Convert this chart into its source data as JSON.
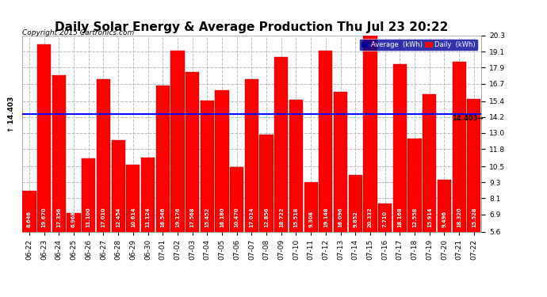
{
  "title": "Daily Solar Energy & Average Production Thu Jul 23 20:22",
  "copyright": "Copyright 2015 Cartronics.com",
  "average_value": 14.403,
  "categories": [
    "06-22",
    "06-23",
    "06-24",
    "06-25",
    "06-26",
    "06-27",
    "06-28",
    "06-29",
    "06-30",
    "07-01",
    "07-02",
    "07-03",
    "07-04",
    "07-05",
    "07-06",
    "07-07",
    "07-08",
    "07-09",
    "07-10",
    "07-11",
    "07-12",
    "07-13",
    "07-14",
    "07-15",
    "07-16",
    "07-17",
    "07-18",
    "07-19",
    "07-20",
    "07-21",
    "07-22"
  ],
  "values": [
    8.646,
    19.67,
    17.356,
    6.968,
    11.1,
    17.01,
    12.454,
    10.614,
    11.124,
    16.546,
    19.176,
    17.568,
    15.452,
    16.18,
    10.47,
    17.014,
    12.856,
    18.722,
    15.518,
    9.308,
    19.148,
    16.096,
    9.852,
    20.332,
    7.71,
    18.168,
    12.558,
    15.914,
    9.496,
    18.32,
    15.528
  ],
  "bar_color": "#ff0000",
  "bar_edge_color": "#bb0000",
  "background_color": "#ffffff",
  "plot_bg_color": "#ffffff",
  "grid_color": "#bbbbbb",
  "average_line_color": "#0000ff",
  "ylim": [
    5.6,
    20.3
  ],
  "yticks": [
    5.6,
    6.9,
    8.1,
    9.3,
    10.5,
    11.8,
    13.0,
    14.2,
    15.4,
    16.7,
    17.9,
    19.1,
    20.3
  ],
  "title_fontsize": 11,
  "copyright_fontsize": 6.5,
  "value_fontsize": 4.8,
  "tick_fontsize": 6.5,
  "legend_avg_color": "#000099",
  "legend_daily_color": "#ff0000",
  "left_avg_label": "↑ 14.403",
  "right_avg_label": "14.403→"
}
